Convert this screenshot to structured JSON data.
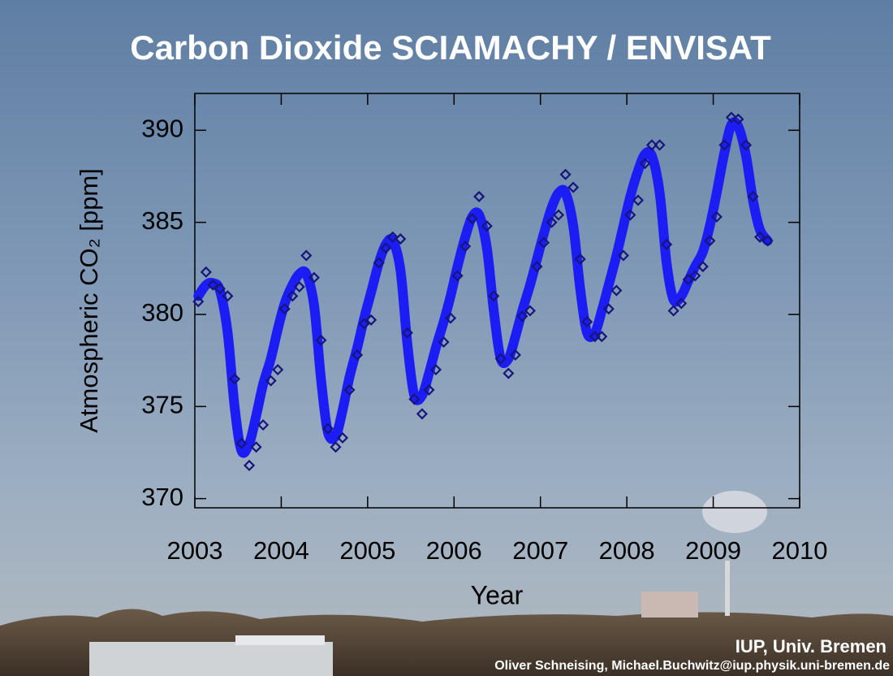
{
  "chart_data": {
    "type": "line",
    "title": "Carbon Dioxide SCIAMACHY / ENVISAT",
    "y_label": "Atmospheric CO₂ [ppm]",
    "x_label": "Year",
    "credit": "IUP, Univ. Bremen",
    "credit_authors": "Oliver Schneising, Michael.Buchwitz@iup.physik.uni-bremen.de",
    "xlim": [
      2003,
      2010
    ],
    "xticks": [
      2003,
      2004,
      2005,
      2006,
      2007,
      2008,
      2009,
      2010
    ],
    "ylim": [
      369.5,
      392
    ],
    "yticks": [
      370,
      375,
      380,
      385,
      390
    ],
    "x": [
      2003.04,
      2003.13,
      2003.21,
      2003.29,
      2003.38,
      2003.46,
      2003.54,
      2003.63,
      2003.71,
      2003.79,
      2003.88,
      2003.96,
      2004.04,
      2004.13,
      2004.21,
      2004.29,
      2004.38,
      2004.46,
      2004.54,
      2004.63,
      2004.71,
      2004.79,
      2004.88,
      2004.96,
      2005.04,
      2005.13,
      2005.21,
      2005.29,
      2005.38,
      2005.46,
      2005.54,
      2005.63,
      2005.71,
      2005.79,
      2005.88,
      2005.96,
      2006.04,
      2006.13,
      2006.21,
      2006.29,
      2006.38,
      2006.46,
      2006.54,
      2006.63,
      2006.71,
      2006.79,
      2006.88,
      2006.96,
      2007.04,
      2007.13,
      2007.21,
      2007.29,
      2007.38,
      2007.46,
      2007.54,
      2007.63,
      2007.71,
      2007.79,
      2007.88,
      2007.96,
      2008.04,
      2008.13,
      2008.21,
      2008.29,
      2008.38,
      2008.46,
      2008.54,
      2008.63,
      2008.71,
      2008.79,
      2008.88,
      2008.96,
      2009.04,
      2009.13,
      2009.21,
      2009.29,
      2009.38,
      2009.46,
      2009.54,
      2009.63
    ],
    "series": [
      {
        "style": "line",
        "color": "#1c1cf5",
        "values": [
          381.0,
          381.6,
          381.7,
          381.3,
          379.0,
          375.0,
          372.6,
          373.0,
          374.5,
          376.2,
          377.6,
          379.2,
          380.6,
          381.6,
          382.2,
          382.2,
          380.5,
          376.5,
          373.6,
          373.4,
          374.8,
          376.6,
          378.2,
          379.8,
          381.2,
          382.8,
          383.8,
          384.0,
          382.4,
          378.4,
          375.6,
          375.6,
          376.8,
          378.2,
          379.6,
          381.0,
          382.6,
          384.2,
          385.3,
          385.4,
          383.6,
          380.2,
          377.6,
          377.6,
          378.8,
          380.2,
          381.6,
          383.0,
          384.4,
          385.8,
          386.6,
          386.6,
          384.8,
          381.4,
          379.0,
          379.0,
          380.2,
          381.6,
          383.2,
          384.8,
          386.4,
          387.8,
          388.7,
          388.6,
          386.6,
          382.8,
          380.8,
          381.0,
          381.8,
          382.6,
          383.4,
          384.8,
          386.6,
          388.8,
          390.3,
          390.2,
          388.6,
          386.2,
          384.6,
          384.0
        ]
      },
      {
        "style": "diamond",
        "color": "#16167a",
        "values": [
          380.7,
          382.3,
          381.6,
          381.4,
          381.0,
          376.5,
          373.0,
          371.8,
          372.8,
          374.0,
          376.4,
          377.0,
          380.3,
          381.0,
          381.5,
          383.2,
          382.0,
          378.6,
          373.8,
          372.8,
          373.3,
          375.9,
          377.8,
          379.5,
          379.7,
          382.8,
          383.6,
          384.2,
          384.1,
          379.0,
          375.4,
          374.6,
          375.9,
          377.0,
          378.5,
          379.8,
          382.1,
          383.7,
          385.2,
          386.4,
          384.8,
          381.0,
          377.6,
          376.8,
          377.8,
          379.9,
          380.2,
          382.6,
          383.9,
          385.0,
          385.4,
          387.6,
          386.9,
          383.0,
          379.6,
          378.8,
          378.8,
          380.3,
          381.3,
          383.2,
          385.4,
          386.2,
          388.2,
          389.2,
          389.2,
          383.8,
          380.2,
          380.6,
          381.9,
          382.1,
          382.6,
          384.0,
          385.3,
          389.2,
          390.7,
          390.6,
          389.2,
          386.4,
          384.2,
          384.0
        ]
      }
    ]
  }
}
